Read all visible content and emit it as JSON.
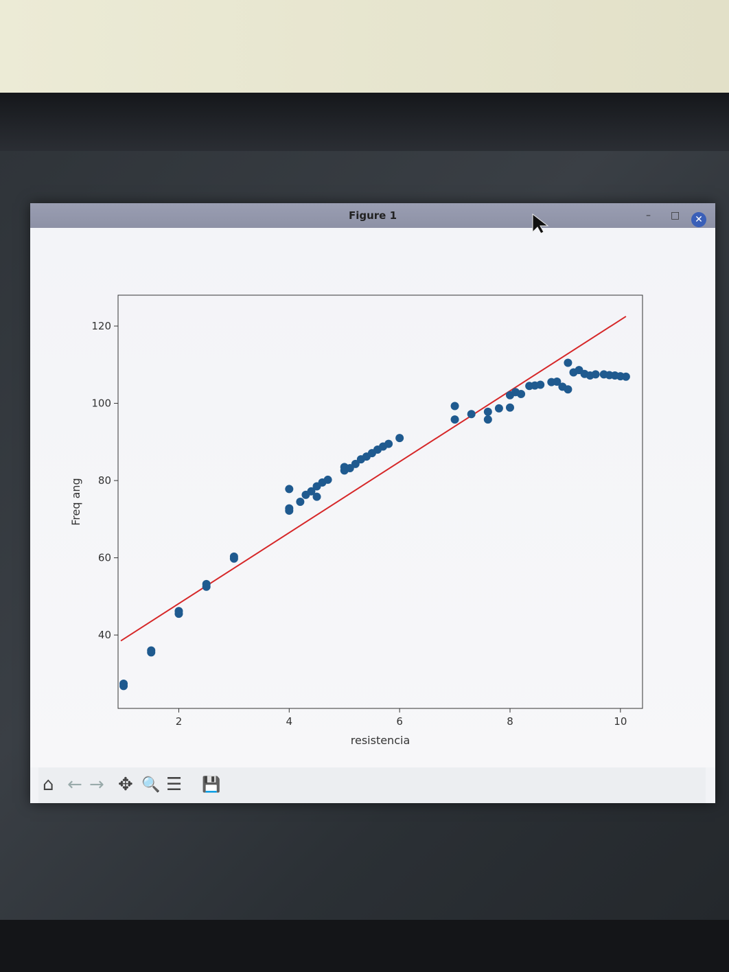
{
  "window": {
    "title": "Figure 1",
    "minimize_glyph": "–",
    "maximize_glyph": "□",
    "close_glyph": "✕"
  },
  "toolbar": {
    "buttons": [
      {
        "name": "home-icon",
        "glyph": "⌂"
      },
      {
        "name": "back-icon",
        "glyph": "←"
      },
      {
        "name": "forward-icon",
        "glyph": "→"
      },
      {
        "name": "pan-icon",
        "glyph": "✥"
      },
      {
        "name": "zoom-icon",
        "glyph": "🔍"
      },
      {
        "name": "configure-subplots-icon",
        "glyph": "☰"
      },
      {
        "name": "save-icon",
        "glyph": "💾"
      }
    ]
  },
  "chart_data": {
    "type": "scatter",
    "title": "",
    "xlabel": "resistencia",
    "ylabel": "Freq ang",
    "xlim": [
      0.9,
      10.4
    ],
    "ylim": [
      21,
      128
    ],
    "xticks": [
      2,
      4,
      6,
      8,
      10
    ],
    "yticks": [
      40,
      60,
      80,
      100,
      120
    ],
    "point_color": "#1f5a8f",
    "line_color": "#d62728",
    "series": [
      {
        "values": [
          [
            1.0,
            26.8
          ],
          [
            1.0,
            27.4
          ],
          [
            1.5,
            35.5
          ],
          [
            1.5,
            36.0
          ],
          [
            2.0,
            45.5
          ],
          [
            2.0,
            46.2
          ],
          [
            2.5,
            52.5
          ],
          [
            2.5,
            53.2
          ],
          [
            3.0,
            59.8
          ],
          [
            3.0,
            60.3
          ],
          [
            4.0,
            72.2
          ],
          [
            4.0,
            72.8
          ],
          [
            4.0,
            77.8
          ],
          [
            4.2,
            74.5
          ],
          [
            4.3,
            76.3
          ],
          [
            4.4,
            77.2
          ],
          [
            4.5,
            75.8
          ],
          [
            4.5,
            78.5
          ],
          [
            4.6,
            79.5
          ],
          [
            4.7,
            80.2
          ],
          [
            5.0,
            82.6
          ],
          [
            5.0,
            83.5
          ],
          [
            5.1,
            83.2
          ],
          [
            5.2,
            84.3
          ],
          [
            5.3,
            85.5
          ],
          [
            5.4,
            86.2
          ],
          [
            5.5,
            87.1
          ],
          [
            5.6,
            88.0
          ],
          [
            5.7,
            88.8
          ],
          [
            5.8,
            89.5
          ],
          [
            6.0,
            91.0
          ],
          [
            7.0,
            95.8
          ],
          [
            7.0,
            99.3
          ],
          [
            7.3,
            97.2
          ],
          [
            7.6,
            95.8
          ],
          [
            7.6,
            97.8
          ],
          [
            7.8,
            98.7
          ],
          [
            8.0,
            98.9
          ],
          [
            8.0,
            102.1
          ],
          [
            8.1,
            102.9
          ],
          [
            8.2,
            102.4
          ],
          [
            8.35,
            104.5
          ],
          [
            8.45,
            104.6
          ],
          [
            8.55,
            104.8
          ],
          [
            8.75,
            105.5
          ],
          [
            8.85,
            105.6
          ],
          [
            8.95,
            104.3
          ],
          [
            9.05,
            103.6
          ],
          [
            9.05,
            110.5
          ],
          [
            9.15,
            108.0
          ],
          [
            9.25,
            108.6
          ],
          [
            9.35,
            107.6
          ],
          [
            9.45,
            107.2
          ],
          [
            9.55,
            107.5
          ],
          [
            9.7,
            107.5
          ],
          [
            9.8,
            107.3
          ],
          [
            9.9,
            107.2
          ],
          [
            10.0,
            107.0
          ],
          [
            10.1,
            106.9
          ]
        ]
      }
    ],
    "fit_line": {
      "x": [
        0.95,
        10.1
      ],
      "y": [
        38.5,
        122.5
      ]
    }
  }
}
